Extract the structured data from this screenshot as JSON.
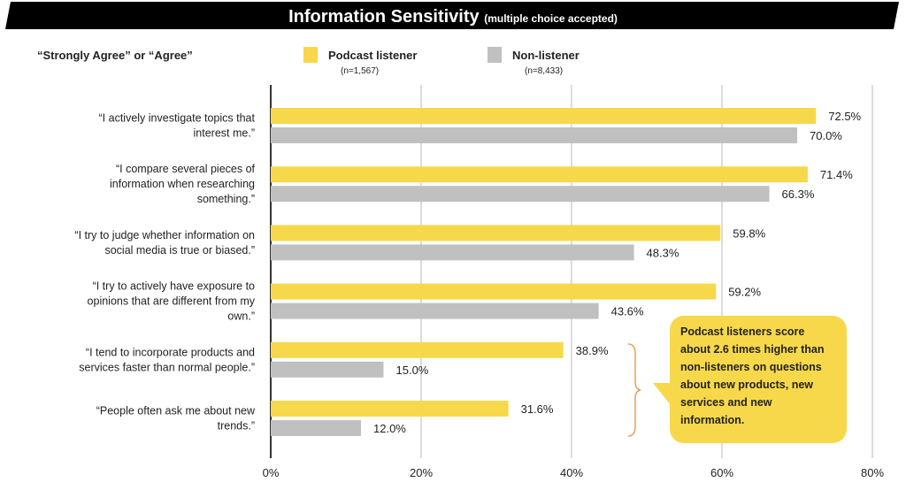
{
  "chart_data": {
    "type": "bar",
    "orientation": "horizontal",
    "title": "Information Sensitivity",
    "subtitle": "(multiple choice accepted)",
    "group_label": "“Strongly Agree” or “Agree”",
    "categories": [
      [
        "“I actively investigate topics that",
        "interest me.”"
      ],
      [
        "“I compare several pieces of",
        "information when researching",
        "something.”"
      ],
      [
        "“I try to judge whether information on",
        "social media is true or biased.”"
      ],
      [
        "“I try to actively have exposure to",
        "opinions that are different from my",
        "own.”"
      ],
      [
        "“I tend to incorporate products and",
        "services faster than normal people.”"
      ],
      [
        "“People often ask me about new",
        "trends.”"
      ]
    ],
    "series": [
      {
        "name": "Podcast listener",
        "note": "(n=1,567)",
        "color": "#f7d84a",
        "values": [
          72.5,
          71.4,
          59.8,
          59.2,
          38.9,
          31.6
        ]
      },
      {
        "name": "Non-listener",
        "note": "(n=8,433)",
        "color": "#c0c0c0",
        "values": [
          70.0,
          66.3,
          48.3,
          43.6,
          15.0,
          12.0
        ]
      }
    ],
    "xlim": [
      0,
      80
    ],
    "xticks": [
      "0%",
      "20%",
      "40%",
      "60%",
      "80%"
    ],
    "grid": true,
    "legend": "top",
    "annotation": "Podcast listeners score about 2.6 times higher than non-listeners on questions about new products, new services and new information.",
    "bracket_color": "#e8a060"
  }
}
